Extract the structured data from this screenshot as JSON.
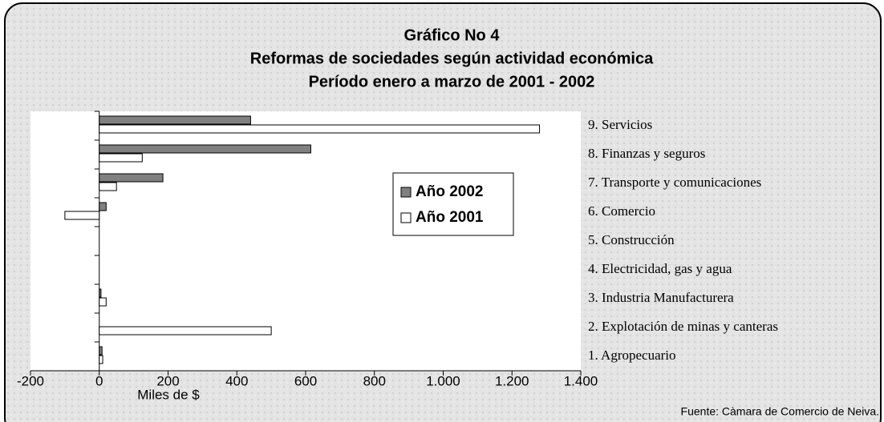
{
  "chart_data": {
    "type": "hbar",
    "title": "Gráfico No  4",
    "subtitle": [
      "Reformas de sociedades según actividad económica",
      "Período enero a marzo de 2001 - 2002"
    ],
    "categories": [
      "1. Agropecuario",
      "2. Explotación de minas y canteras",
      "3. Industria Manufacturera",
      "4. Electricidad, gas y agua",
      "5. Construcción",
      "6. Comercio",
      "7. Transporte y comunicaciones",
      "8. Finanzas y seguros",
      "9. Servicios"
    ],
    "series": [
      {
        "name": "Año 2002",
        "color": "#808080",
        "values": [
          8,
          0,
          5,
          0,
          0,
          20,
          185,
          615,
          440
        ]
      },
      {
        "name": "Año 2001",
        "color": "#ffffff",
        "values": [
          10,
          500,
          20,
          0,
          0,
          -100,
          50,
          125,
          1280
        ]
      }
    ],
    "xlim": [
      -200,
      1400
    ],
    "xticks": [
      -200,
      0,
      200,
      400,
      600,
      800,
      {
        "value": 1000,
        "label": "1.000"
      },
      {
        "value": 1200,
        "label": "1.200"
      },
      {
        "value": 1400,
        "label": "1.400"
      }
    ],
    "xlabel": "Miles de $",
    "source": "Fuente: Càmara de Comercio de Neiva.",
    "legend": "center"
  }
}
